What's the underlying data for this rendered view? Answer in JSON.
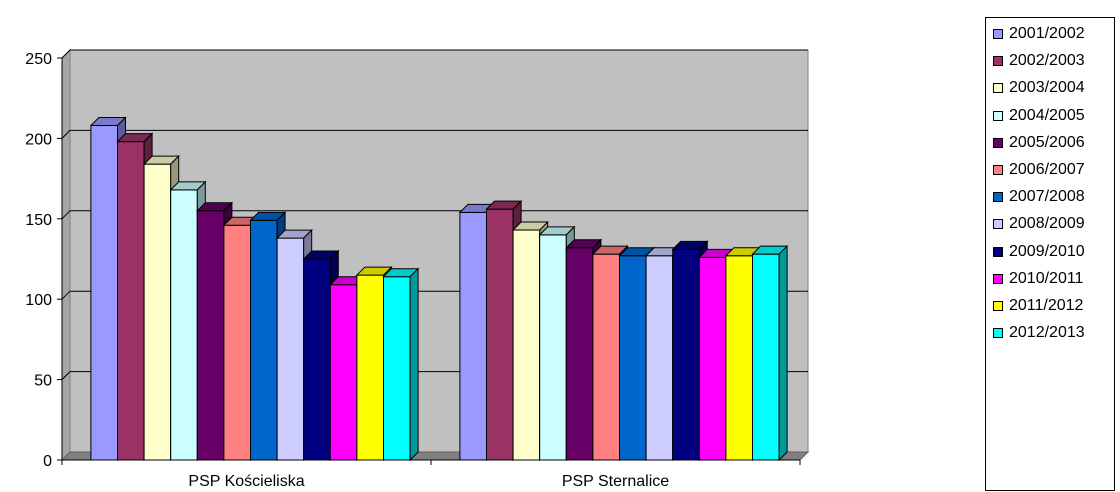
{
  "chart_data": {
    "type": "bar",
    "style": "3d-clustered-column",
    "categories": [
      "PSP Kościeliska",
      "PSP Sternalice"
    ],
    "series": [
      {
        "name": "2001/2002",
        "color": "#9999ff",
        "values": [
          208,
          154
        ]
      },
      {
        "name": "2002/2003",
        "color": "#993366",
        "values": [
          198,
          156
        ]
      },
      {
        "name": "2003/2004",
        "color": "#ffffcc",
        "values": [
          184,
          143
        ]
      },
      {
        "name": "2004/2005",
        "color": "#ccffff",
        "values": [
          168,
          140
        ]
      },
      {
        "name": "2005/2006",
        "color": "#660066",
        "values": [
          155,
          132
        ]
      },
      {
        "name": "2006/2007",
        "color": "#ff8080",
        "values": [
          146,
          128
        ]
      },
      {
        "name": "2007/2008",
        "color": "#0066cc",
        "values": [
          149,
          127
        ]
      },
      {
        "name": "2008/2009",
        "color": "#ccccff",
        "values": [
          138,
          127
        ]
      },
      {
        "name": "2009/2010",
        "color": "#000080",
        "values": [
          125,
          131
        ]
      },
      {
        "name": "2010/2011",
        "color": "#ff00ff",
        "values": [
          109,
          126
        ]
      },
      {
        "name": "2011/2012",
        "color": "#ffff00",
        "values": [
          115,
          127
        ]
      },
      {
        "name": "2012/2013",
        "color": "#00ffff",
        "values": [
          114,
          128
        ]
      }
    ],
    "ylim": [
      0,
      250
    ],
    "yticks": [
      "0",
      "50",
      "100",
      "150",
      "200",
      "250"
    ],
    "grid": true,
    "legend_position": "right",
    "wall_color": "#c0c0c0",
    "floor_color": "#808080"
  }
}
